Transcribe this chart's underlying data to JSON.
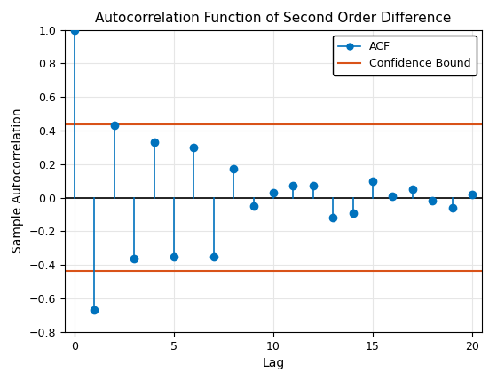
{
  "title": "Autocorrelation Function of Second Order Difference",
  "xlabel": "Lag",
  "ylabel": "Sample Autocorrelation",
  "lags": [
    0,
    1,
    2,
    3,
    4,
    5,
    6,
    7,
    8,
    9,
    10,
    11,
    12,
    13,
    14,
    15,
    16,
    17,
    18,
    19,
    20
  ],
  "acf": [
    1.0,
    -0.67,
    0.43,
    -0.36,
    0.33,
    -0.35,
    0.3,
    -0.35,
    0.17,
    -0.05,
    0.03,
    0.07,
    0.07,
    -0.12,
    -0.09,
    0.1,
    0.01,
    0.05,
    -0.02,
    -0.06,
    0.02
  ],
  "conf_bound_upper": 0.435,
  "conf_bound_lower": -0.435,
  "stem_color": "#0072BD",
  "marker_color": "#0072BD",
  "conf_color": "#D95319",
  "ylim": [
    -0.8,
    1.0
  ],
  "xlim": [
    -0.5,
    20.5
  ],
  "yticks": [
    -0.8,
    -0.6,
    -0.4,
    -0.2,
    0.0,
    0.2,
    0.4,
    0.6,
    0.8,
    1.0
  ],
  "xticks": [
    0,
    5,
    10,
    15,
    20
  ],
  "grid_color": "#E6E6E6",
  "background_color": "#FFFFFF",
  "title_fontsize": 11,
  "label_fontsize": 10,
  "tick_fontsize": 9,
  "legend_labels": [
    "ACF",
    "Confidence Bound"
  ]
}
